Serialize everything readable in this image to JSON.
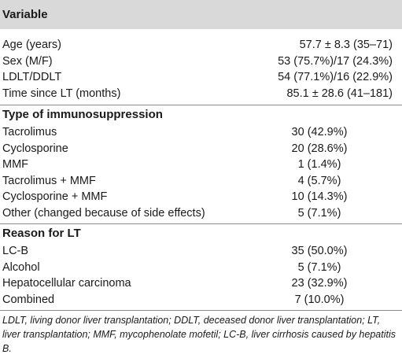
{
  "header": {
    "title": "Variable"
  },
  "demographics": [
    {
      "label": "Age (years)",
      "value": "57.7 ± 8.3 (35–71)"
    },
    {
      "label": "Sex (M/F)",
      "value": "53 (75.7%)/17 (24.3%)"
    },
    {
      "label": "LDLT/DDLT",
      "value": "54 (77.1%)/16 (22.9%)"
    },
    {
      "label": "Time since LT (months)",
      "value": "85.1 ± 28.6 (41–181)"
    }
  ],
  "immunosuppression": {
    "title": "Type of immunosuppression",
    "rows": [
      {
        "label": "Tacrolimus",
        "value": "30 (42.9%)"
      },
      {
        "label": "Cyclosporine",
        "value": "20 (28.6%)"
      },
      {
        "label": "MMF",
        "value": "1 (1.4%)"
      },
      {
        "label": "Tacrolimus + MMF",
        "value": "4 (5.7%)"
      },
      {
        "label": "Cyclosporine + MMF",
        "value": "10 (14.3%)"
      },
      {
        "label": "Other (changed because of side effects)",
        "value": "5 (7.1%)"
      }
    ]
  },
  "reason": {
    "title": "Reason for LT",
    "rows": [
      {
        "label": "LC-B",
        "value": "35 (50.0%)"
      },
      {
        "label": "Alcohol",
        "value": "5 (7.1%)"
      },
      {
        "label": "Hepatocellular carcinoma",
        "value": "23 (32.9%)"
      },
      {
        "label": "Combined",
        "value": "7 (10.0%)"
      }
    ]
  },
  "footnote": "LDLT, living donor liver transplantation; DDLT, deceased donor liver transplantation; LT, liver transplantation; MMF, mycophenolate mofetil; LC-B, liver cirrhosis caused by hepatitis B."
}
